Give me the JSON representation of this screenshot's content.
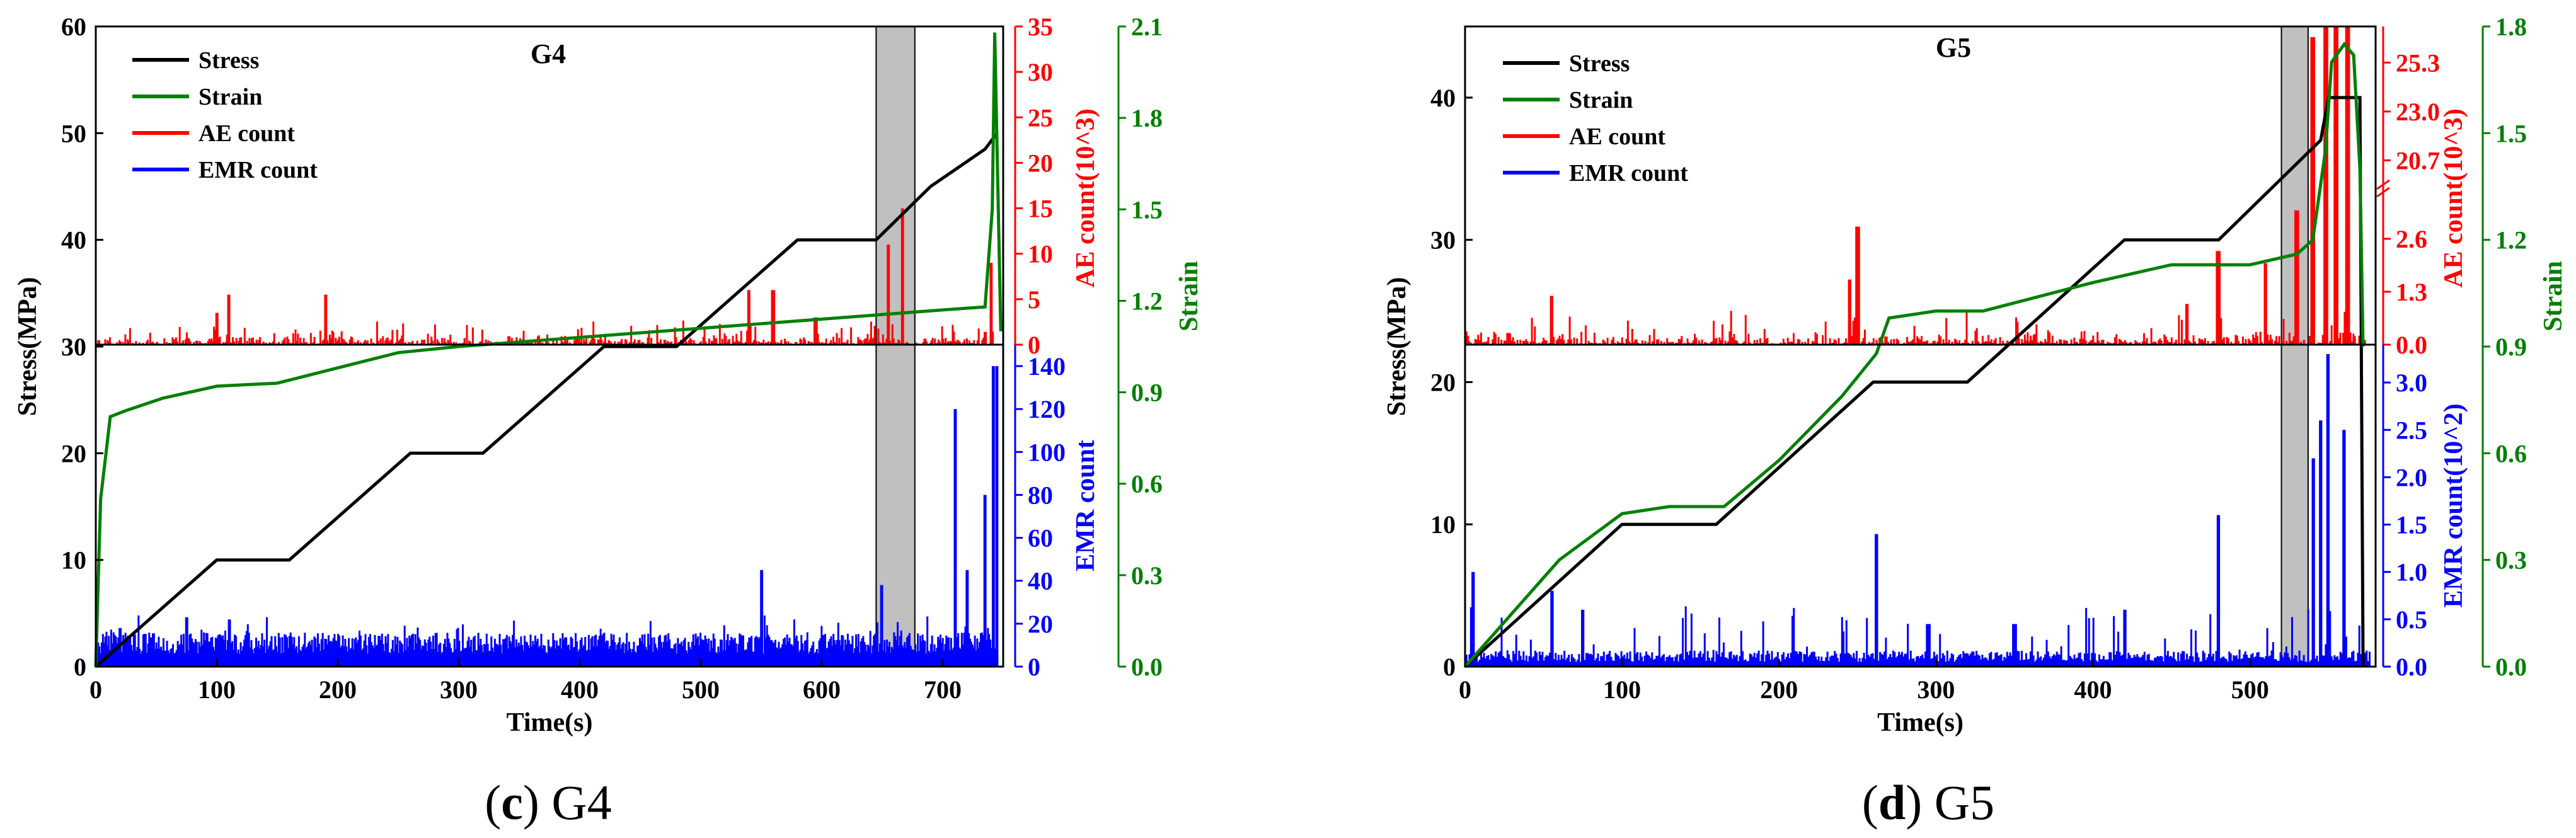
{
  "chart_data": [
    {
      "type": "line",
      "panel_title": "G4",
      "caption": {
        "letter": "c",
        "text": " G4"
      },
      "xlabel": "Time(s)",
      "ylabel_left": "Stress(MPa)",
      "ylabel_ae": "AE count(10^3)",
      "ylabel_emr": "EMR count",
      "ylabel_strain": "Strain",
      "xlim": [
        0,
        750
      ],
      "x_ticks": [
        "0",
        "100",
        "200",
        "300",
        "400",
        "500",
        "600",
        "700"
      ],
      "stress_ylim": [
        0,
        60
      ],
      "stress_ticks": [
        "0",
        "10",
        "20",
        "30",
        "40",
        "50",
        "60"
      ],
      "ae_ylim": [
        0,
        35
      ],
      "ae_ticks": [
        "0",
        "5",
        "10",
        "15",
        "20",
        "25",
        "30",
        "35"
      ],
      "emr_ylim": [
        0,
        150
      ],
      "emr_ticks": [
        "0",
        "20",
        "40",
        "60",
        "80",
        "100",
        "120",
        "140"
      ],
      "strain_ylim": [
        0,
        2.1
      ],
      "strain_ticks": [
        "0.0",
        "0.3",
        "0.6",
        "0.9",
        "1.2",
        "1.5",
        "1.8",
        "2.1"
      ],
      "shaded_region": [
        645,
        677
      ],
      "legend": [
        "Stress",
        "Strain",
        "AE count",
        "EMR count"
      ],
      "colors": {
        "stress": "#000000",
        "strain": "#008000",
        "ae": "#ff0000",
        "emr": "#0000ff",
        "shade": "#c0c0c0"
      },
      "stress": {
        "x": [
          0,
          100,
          160,
          260,
          320,
          420,
          480,
          580,
          645,
          690,
          735,
          745
        ],
        "y": [
          0,
          10,
          10,
          20,
          20,
          30,
          30,
          40,
          40,
          45,
          48.5,
          50
        ]
      },
      "strain": {
        "x": [
          0,
          4,
          12,
          25,
          55,
          100,
          150,
          170,
          220,
          250,
          300,
          400,
          500,
          600,
          700,
          735,
          741,
          743,
          748
        ],
        "y": [
          0,
          0.55,
          0.82,
          0.84,
          0.88,
          0.92,
          0.93,
          0.95,
          1.0,
          1.03,
          1.05,
          1.08,
          1.11,
          1.14,
          1.17,
          1.18,
          1.5,
          2.08,
          1.1
        ]
      },
      "ae_peaks": {
        "x": [
          100,
          110,
          190,
          540,
          560,
          595,
          655,
          667,
          740,
          743,
          746
        ],
        "y": [
          3.5,
          5.5,
          5.5,
          6,
          6,
          3,
          11,
          15,
          9,
          20,
          32
        ]
      },
      "emr_peaks": {
        "x": [
          20,
          75,
          110,
          550,
          650,
          710,
          720,
          735,
          742,
          745
        ],
        "y": [
          18,
          23,
          22,
          45,
          38,
          120,
          45,
          80,
          140,
          140
        ]
      }
    },
    {
      "type": "line",
      "panel_title": "G5",
      "caption": {
        "letter": "d",
        "text": " G5"
      },
      "xlabel": "Time(s)",
      "ylabel_left": "Stress(MPa)",
      "ylabel_ae": "AE count(10^3)",
      "ylabel_emr": "EMR count(10^2)",
      "ylabel_strain": "Strain",
      "xlim": [
        0,
        580
      ],
      "x_ticks": [
        "0",
        "100",
        "200",
        "300",
        "400",
        "500"
      ],
      "stress_ylim": [
        0,
        45
      ],
      "stress_ticks": [
        "0",
        "10",
        "20",
        "30",
        "40"
      ],
      "ae_ticks_lower": [
        "0.0",
        "1.3",
        "2.6"
      ],
      "ae_ticks_upper": [
        "20.7",
        "23.0",
        "25.3"
      ],
      "ae_lower_range": [
        0,
        3.9
      ],
      "ae_upper_range": [
        19.5,
        27
      ],
      "emr_ylim": [
        0,
        3.4
      ],
      "emr_ticks": [
        "0.0",
        "0.5",
        "1.0",
        "1.5",
        "2.0",
        "2.5",
        "3.0"
      ],
      "strain_ylim": [
        0,
        1.8
      ],
      "strain_ticks": [
        "0.0",
        "0.3",
        "0.6",
        "0.9",
        "1.2",
        "1.5",
        "1.8"
      ],
      "shaded_region": [
        520,
        537
      ],
      "legend": [
        "Stress",
        "Strain",
        "AE count",
        "EMR count"
      ],
      "colors": {
        "stress": "#000000",
        "strain": "#008000",
        "ae": "#ff0000",
        "emr": "#0000ff",
        "shade": "#c0c0c0"
      },
      "stress": {
        "x": [
          0,
          100,
          160,
          260,
          320,
          420,
          480,
          545,
          550,
          565,
          570,
          572
        ],
        "y": [
          0,
          10,
          10,
          20,
          20,
          30,
          30,
          37,
          40,
          40,
          40,
          0
        ]
      },
      "strain": {
        "x": [
          0,
          30,
          60,
          100,
          130,
          165,
          200,
          240,
          262,
          270,
          300,
          330,
          400,
          450,
          500,
          530,
          540,
          548,
          552,
          560,
          566,
          570,
          572
        ],
        "y": [
          0,
          0.15,
          0.3,
          0.43,
          0.45,
          0.45,
          0.58,
          0.76,
          0.88,
          0.98,
          1.0,
          1.0,
          1.08,
          1.13,
          1.13,
          1.16,
          1.2,
          1.45,
          1.7,
          1.75,
          1.72,
          1.4,
          0.9
        ]
      },
      "ae_peaks": {
        "x": [
          55,
          245,
          250,
          460,
          480,
          510,
          530,
          540,
          548,
          555,
          562
        ],
        "y": [
          1.2,
          1.6,
          2.9,
          1.0,
          2.3,
          2.0,
          3.3,
          26.5,
          27,
          27,
          27
        ]
      },
      "emr_peaks": {
        "x": [
          5,
          55,
          75,
          262,
          295,
          350,
          420,
          480,
          540,
          545,
          550,
          560
        ],
        "y": [
          1.0,
          0.8,
          0.6,
          1.4,
          0.45,
          0.45,
          0.6,
          1.6,
          2.2,
          2.6,
          3.3,
          2.5
        ]
      }
    }
  ]
}
